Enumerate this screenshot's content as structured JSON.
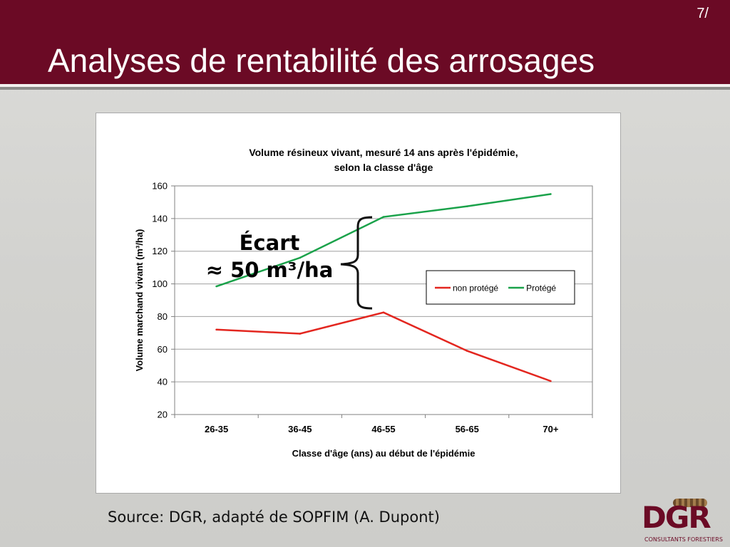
{
  "slide": {
    "page_number": "7/",
    "title": "Analyses de rentabilité des arrosages",
    "source": "Source: DGR, adapté de SOPFIM (A. Dupont)",
    "annotation_line1": "Écart",
    "annotation_line2": "≈ 50 m³/ha"
  },
  "logo": {
    "name": "DGR",
    "subtitle": "CONSULTANTS FORESTIERS"
  },
  "colors": {
    "header": "#6b0a25",
    "series_non_protege": "#e3261f",
    "series_protege": "#1aa24a"
  },
  "chart_data": {
    "type": "line",
    "title_line1": "Volume résineux vivant, mesuré 14 ans après l'épidémie,",
    "title_line2": "selon la classe d'âge",
    "xlabel": "Classe d'âge (ans) au début de l'épidémie",
    "ylabel": "Volume marchand vivant (m³/ha)",
    "categories": [
      "26-35",
      "36-45",
      "46-55",
      "56-65",
      "70+"
    ],
    "ylim": [
      20,
      160
    ],
    "yticks": [
      20,
      40,
      60,
      80,
      100,
      120,
      140,
      160
    ],
    "grid": true,
    "legend_position": "right",
    "series": [
      {
        "name": "non protégé",
        "values": [
          72,
          69.5,
          82.5,
          59,
          40.5
        ],
        "color": "#e3261f"
      },
      {
        "name": "Protégé",
        "values": [
          98.5,
          116,
          141,
          147.5,
          155
        ],
        "color": "#1aa24a"
      }
    ]
  }
}
